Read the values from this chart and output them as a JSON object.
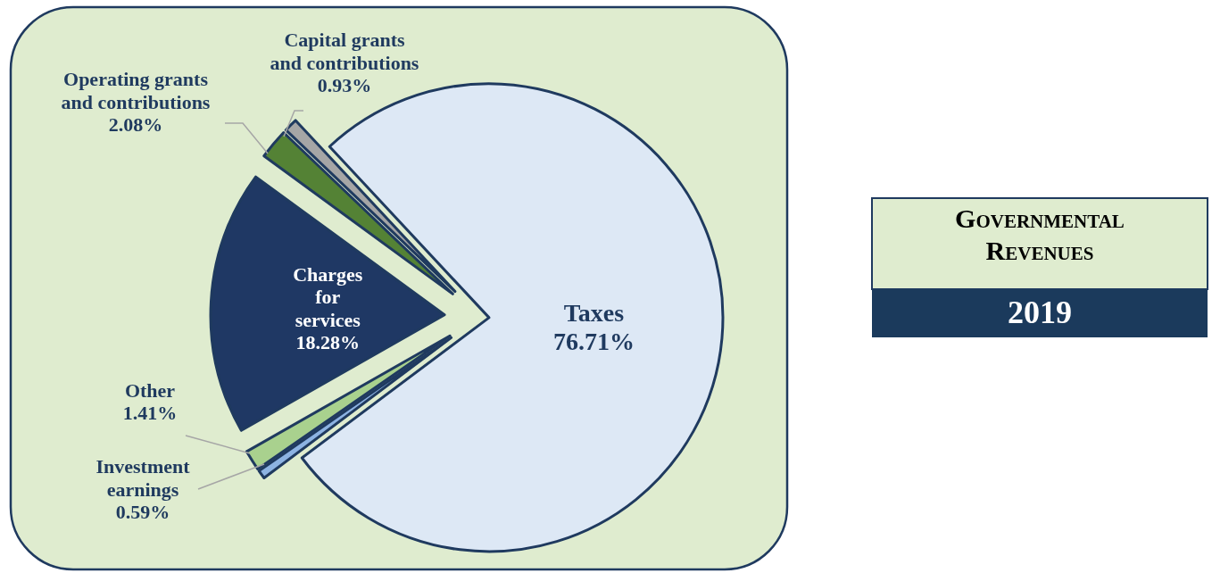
{
  "chart_data": {
    "type": "pie",
    "title": "Governmental Revenues",
    "subtitle": "2019",
    "categories": [
      "Taxes",
      "Investment earnings",
      "Other",
      "Charges for services",
      "Operating grants and contributions",
      "Capital grants and contributions"
    ],
    "values": [
      76.71,
      0.59,
      1.41,
      18.28,
      2.08,
      0.93
    ],
    "colors": [
      "#dde8f5",
      "#8db3e2",
      "#a9d18e",
      "#1f3864",
      "#548235",
      "#a6a6a6"
    ],
    "value_labels": [
      "76.71%",
      "0.59%",
      "1.41%",
      "18.28%",
      "2.08%",
      "0.93%"
    ]
  }
}
